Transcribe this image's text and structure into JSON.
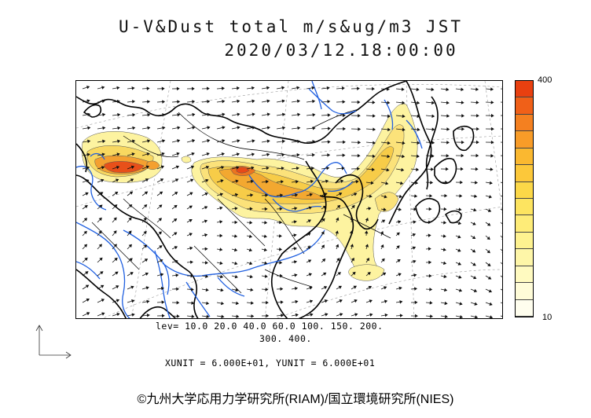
{
  "header": {
    "title_line1": "U-V&Dust total m/s&ug/m3 JST",
    "title_line2": "2020/03/12.18:00:00"
  },
  "legend": {
    "max_label": "400",
    "min_label": "10",
    "colors": [
      "#e84010",
      "#f06018",
      "#f48020",
      "#f89c28",
      "#fab830",
      "#fcc83a",
      "#fcd848",
      "#fde460",
      "#feec78",
      "#fef290",
      "#fef6a8",
      "#fffac0",
      "#fffcd8",
      "#fffeee"
    ]
  },
  "footer": {
    "lev_line1": "lev= 10.0 20.0 40.0 60.0 100. 150. 200.",
    "lev_line2": "300. 400.",
    "units": "XUNIT = 6.000E+01, YUNIT = 6.000E+01",
    "copyright": "©九州大学応用力学研究所(RIAM)/国立環境研究所(NIES)"
  },
  "map": {
    "region": "East Asia",
    "dust_color_low": "#fdf3a0",
    "dust_color_mid": "#f4c030",
    "dust_color_high": "#e8501a",
    "river_color": "#1f5fe0"
  }
}
